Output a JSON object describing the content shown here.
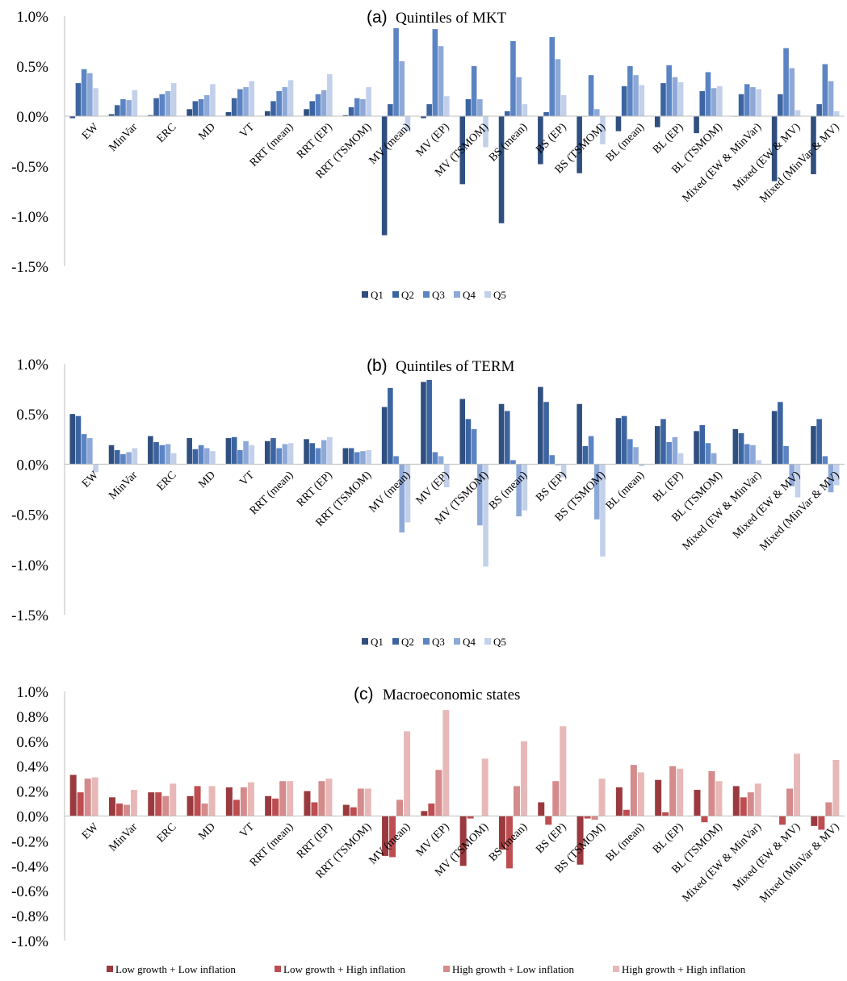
{
  "chart_data": [
    {
      "type": "bar",
      "panel_label": "(a)",
      "title": "Quintiles of MKT",
      "ylim": [
        -0.015,
        0.01
      ],
      "yticks": [
        0.01,
        0.005,
        0.0,
        -0.005,
        -0.01,
        -0.015
      ],
      "ytick_labels": [
        "1.0%",
        "0.5%",
        "0.0%",
        "-0.5%",
        "-1.0%",
        "-1.5%"
      ],
      "grid": false,
      "legend_position": "bottom",
      "categories": [
        "EW",
        "MinVar",
        "ERC",
        "MD",
        "VT",
        "RRT (mean)",
        "RRT (EP)",
        "RRT (TSMOM)",
        "MV (mean)",
        "MV (EP)",
        "MV (TSMOM)",
        "BS (mean)",
        "BS (EP)",
        "BS (TSMOM)",
        "BL (mean)",
        "BL (EP)",
        "BL (TSMOM)",
        "Mixed (EW & MinVar)",
        "Mixed (EW & MV)",
        "Mixed (MinVar & MV)"
      ],
      "series": [
        {
          "name": "Q1",
          "color": "#2f4f7f",
          "values": [
            -0.0002,
            0.0002,
            0.0001,
            0.0007,
            0.0004,
            0.0005,
            0.0007,
            0.0001,
            -0.0119,
            -0.0002,
            -0.0068,
            -0.0107,
            -0.0048,
            -0.0057,
            -0.0015,
            -0.0011,
            -0.0017,
            0.0,
            -0.0065,
            -0.0058
          ]
        },
        {
          "name": "Q2",
          "color": "#3c64a0",
          "values": [
            0.0033,
            0.0011,
            0.0018,
            0.0015,
            0.0018,
            0.0015,
            0.0015,
            0.0009,
            0.0012,
            0.0012,
            0.0017,
            0.0005,
            0.0004,
            0.0,
            0.003,
            0.0033,
            0.0025,
            0.0022,
            0.0022,
            0.0012
          ]
        },
        {
          "name": "Q3",
          "color": "#5b84c4",
          "values": [
            0.0047,
            0.0017,
            0.0022,
            0.0017,
            0.0027,
            0.0025,
            0.0022,
            0.0018,
            0.0088,
            0.0087,
            0.005,
            0.0075,
            0.0079,
            0.0041,
            0.005,
            0.0051,
            0.0044,
            0.0032,
            0.0068,
            0.0052
          ]
        },
        {
          "name": "Q4",
          "color": "#8ea9d8",
          "values": [
            0.0043,
            0.0016,
            0.0025,
            0.0021,
            0.0029,
            0.0029,
            0.0026,
            0.0017,
            0.0055,
            0.007,
            0.0017,
            0.0039,
            0.0057,
            0.0007,
            0.0041,
            0.0039,
            0.0028,
            0.0029,
            0.0048,
            0.0035
          ]
        },
        {
          "name": "Q5",
          "color": "#c2d0ea",
          "values": [
            0.0028,
            0.0026,
            0.0033,
            0.0032,
            0.0035,
            0.0036,
            0.0042,
            0.0029,
            -0.0015,
            0.002,
            -0.0031,
            0.0012,
            0.0021,
            -0.0028,
            0.0031,
            0.0034,
            0.003,
            0.0027,
            0.0006,
            0.0005
          ]
        }
      ]
    },
    {
      "type": "bar",
      "panel_label": "(b)",
      "title": "Quintiles of TERM",
      "ylim": [
        -0.015,
        0.01
      ],
      "yticks": [
        0.01,
        0.005,
        0.0,
        -0.005,
        -0.01,
        -0.015
      ],
      "ytick_labels": [
        "1.0%",
        "0.5%",
        "0.0%",
        "-0.5%",
        "-1.0%",
        "-1.5%"
      ],
      "grid": false,
      "legend_position": "bottom",
      "categories": [
        "EW",
        "MinVar",
        "ERC",
        "MD",
        "VT",
        "RRT (mean)",
        "RRT (EP)",
        "RRT (TSMOM)",
        "MV (mean)",
        "MV (EP)",
        "MV (TSMOM)",
        "BS (mean)",
        "BS (EP)",
        "BS (TSMOM)",
        "BL (mean)",
        "BL (EP)",
        "BL (TSMOM)",
        "Mixed (EW & MinVar)",
        "Mixed (EW & MV)",
        "Mixed (MinVar & MV)"
      ],
      "series": [
        {
          "name": "Q1",
          "color": "#2f4f7f",
          "values": [
            0.005,
            0.0019,
            0.0028,
            0.0026,
            0.0026,
            0.0023,
            0.0025,
            0.0016,
            0.0057,
            0.0082,
            0.0065,
            0.006,
            0.0077,
            0.006,
            0.0046,
            0.0038,
            0.0033,
            0.0035,
            0.0053,
            0.0038
          ]
        },
        {
          "name": "Q2",
          "color": "#3c64a0",
          "values": [
            0.0048,
            0.0014,
            0.0022,
            0.0015,
            0.0027,
            0.0026,
            0.0021,
            0.0016,
            0.0076,
            0.0084,
            0.0045,
            0.0053,
            0.0062,
            0.0018,
            0.0048,
            0.0045,
            0.0039,
            0.0031,
            0.0062,
            0.0045
          ]
        },
        {
          "name": "Q3",
          "color": "#5b84c4",
          "values": [
            0.003,
            0.001,
            0.0019,
            0.0019,
            0.0014,
            0.0016,
            0.0016,
            0.0012,
            0.0008,
            0.0012,
            0.0035,
            0.0004,
            0.0009,
            0.0028,
            0.0025,
            0.0022,
            0.0021,
            0.002,
            0.0018,
            0.0008
          ]
        },
        {
          "name": "Q4",
          "color": "#8ea9d8",
          "values": [
            0.0026,
            0.0012,
            0.002,
            0.0016,
            0.0023,
            0.002,
            0.0024,
            0.0013,
            -0.0068,
            0.0008,
            -0.0061,
            -0.0052,
            -0.0001,
            -0.0055,
            0.0017,
            0.0027,
            0.0011,
            0.0019,
            -0.0022,
            -0.0028
          ]
        },
        {
          "name": "Q5",
          "color": "#c2d0ea",
          "values": [
            -0.0008,
            0.0016,
            0.0011,
            0.0013,
            0.0019,
            0.0021,
            0.0027,
            0.0014,
            -0.0058,
            -0.0023,
            -0.0102,
            -0.0046,
            -0.0013,
            -0.0092,
            -0.0002,
            0.0011,
            0.0,
            0.0004,
            -0.0033,
            -0.0021
          ]
        }
      ]
    },
    {
      "type": "bar",
      "panel_label": "(c)",
      "title": "Macroeconomic states",
      "ylim": [
        -0.01,
        0.01
      ],
      "yticks": [
        0.01,
        0.008,
        0.006,
        0.004,
        0.002,
        0.0,
        -0.002,
        -0.004,
        -0.006,
        -0.008,
        -0.01
      ],
      "ytick_labels": [
        "1.0%",
        "0.8%",
        "0.6%",
        "0.4%",
        "0.2%",
        "0.0%",
        "-0.2%",
        "-0.4%",
        "-0.6%",
        "-0.8%",
        "-1.0%"
      ],
      "grid": false,
      "legend_position": "bottom",
      "categories": [
        "EW",
        "MinVar",
        "ERC",
        "MD",
        "VT",
        "RRT (mean)",
        "RRT (EP)",
        "RRT (TSMOM)",
        "MV (mean)",
        "MV (EP)",
        "MV (TSMOM)",
        "BS (mean)",
        "BS (EP)",
        "BS (TSMOM)",
        "BL (mean)",
        "BL (EP)",
        "BL (TSMOM)",
        "Mixed (EW & MinVar)",
        "Mixed (EW & MV)",
        "Mixed (MinVar & MV)"
      ],
      "series": [
        {
          "name": "Low growth + Low inflation",
          "color": "#9a3a3e",
          "values": [
            0.0033,
            0.0015,
            0.0019,
            0.0016,
            0.0023,
            0.0016,
            0.002,
            0.0009,
            -0.0032,
            0.0004,
            -0.004,
            -0.0027,
            0.0011,
            -0.0039,
            0.0023,
            0.0029,
            0.0021,
            0.0024,
            0.0,
            -0.0008
          ]
        },
        {
          "name": "Low growth + High inflation",
          "color": "#bd4d51",
          "values": [
            0.0019,
            0.001,
            0.0019,
            0.0024,
            0.0013,
            0.0014,
            0.0011,
            0.0007,
            -0.0033,
            0.001,
            -0.0002,
            -0.0042,
            -0.0007,
            -0.0002,
            0.0005,
            0.0003,
            -0.0005,
            0.0015,
            -0.0007,
            -0.0011
          ]
        },
        {
          "name": "High growth + Low inflation",
          "color": "#d58a8b",
          "values": [
            0.003,
            0.0009,
            0.0016,
            0.001,
            0.0023,
            0.0028,
            0.0028,
            0.0022,
            0.0013,
            0.0037,
            0.0,
            0.0024,
            0.0028,
            -0.0003,
            0.0041,
            0.004,
            0.0036,
            0.0019,
            0.0022,
            0.0011
          ]
        },
        {
          "name": "High growth + High inflation",
          "color": "#e8b8b8",
          "values": [
            0.0031,
            0.0021,
            0.0026,
            0.0024,
            0.0027,
            0.0028,
            0.003,
            0.0022,
            0.0068,
            0.0085,
            0.0046,
            0.006,
            0.0072,
            0.003,
            0.0035,
            0.0038,
            0.0028,
            0.0026,
            0.005,
            0.0045
          ]
        }
      ]
    }
  ]
}
